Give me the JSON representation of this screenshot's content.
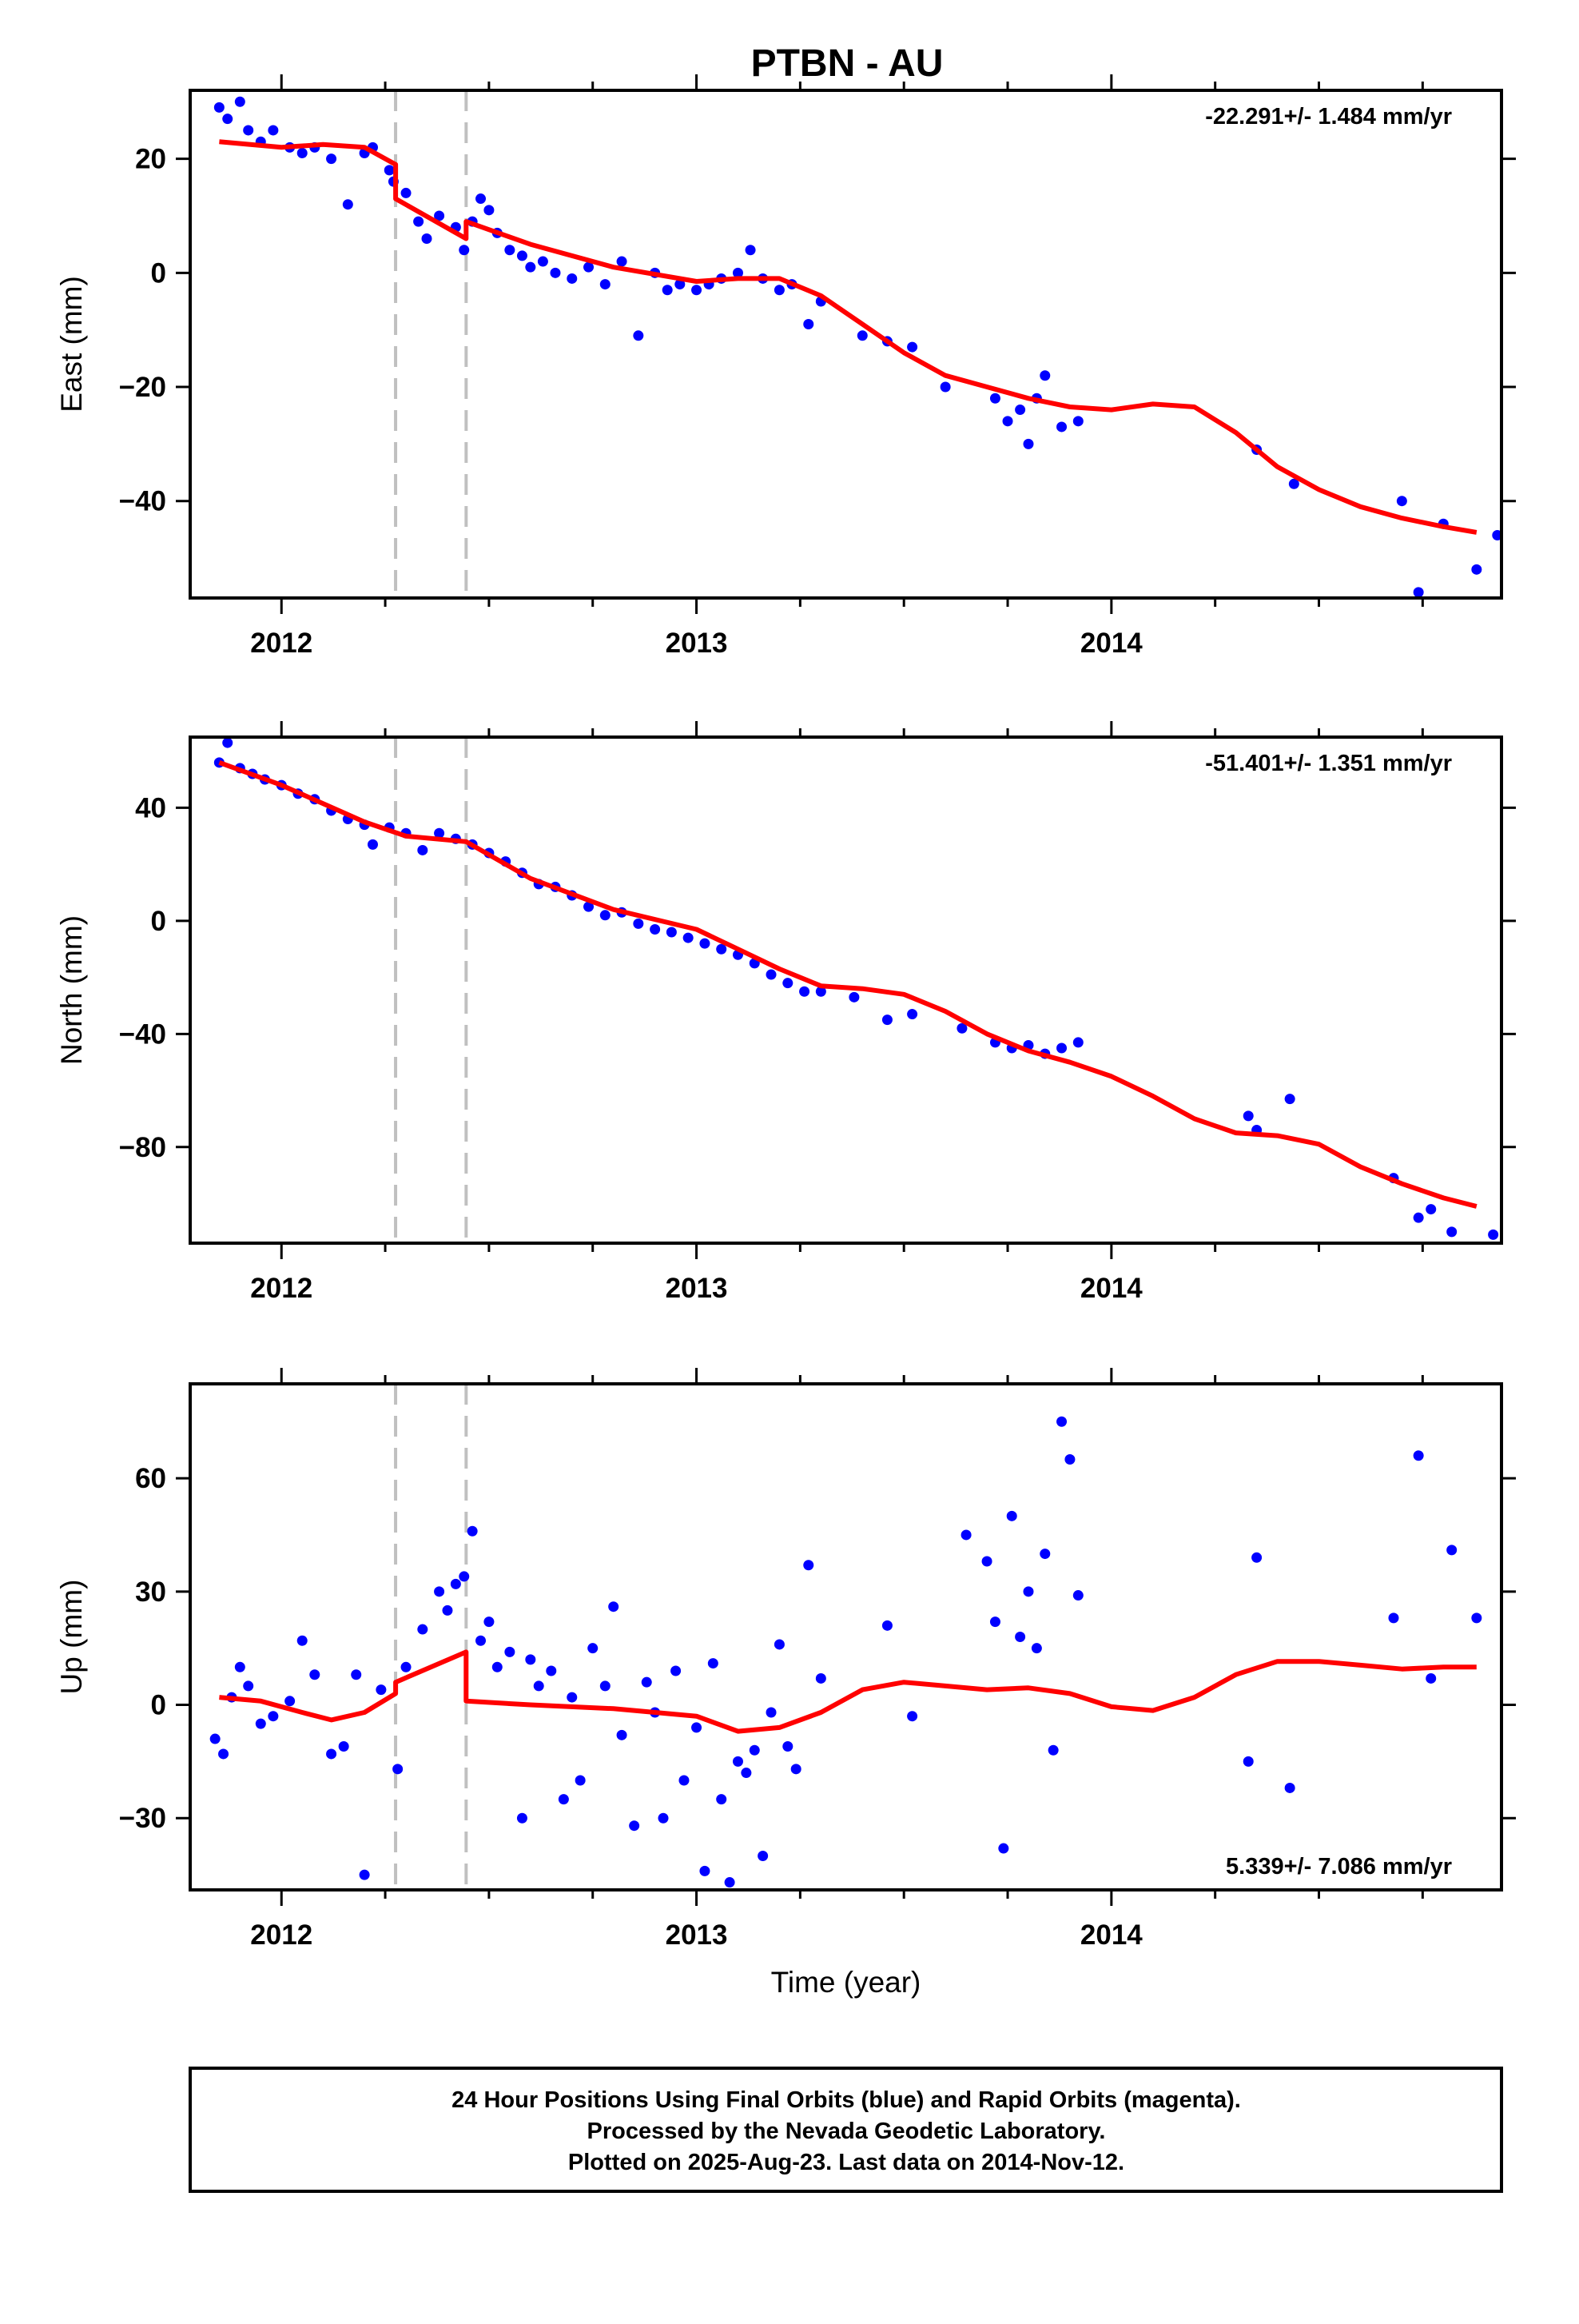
{
  "title": "PTBN - AU",
  "colors": {
    "final_orbits": "#0000ff",
    "model": "#ff0000",
    "offsets": "#c0c0c0",
    "frame": "#000000"
  },
  "footer": {
    "line1": "24 Hour Positions Using Final Orbits (blue) and Rapid Orbits (magenta).",
    "line2": "Processed by the Nevada Geodetic Laboratory.",
    "line3": "Plotted on 2025-Aug-23. Last data on 2014-Nov-12."
  },
  "chart_data": [
    {
      "type": "scatter",
      "panel": "east",
      "ylabel": "East (mm)",
      "xlabel": "",
      "rate_label": "-22.291+/- 1.484 mm/yr",
      "xlim": [
        2011.78,
        2014.94
      ],
      "ylim": [
        -57,
        32
      ],
      "xticks": [
        2012,
        2013,
        2014
      ],
      "yticks": [
        -40,
        -20,
        0,
        20
      ],
      "offsets": [
        2012.275,
        2012.445
      ],
      "series": [
        {
          "kind": "points",
          "x": [
            2011.85,
            2011.87,
            2011.9,
            2011.92,
            2011.95,
            2011.98,
            2012.02,
            2012.05,
            2012.08,
            2012.12,
            2012.16,
            2012.2,
            2012.22,
            2012.26,
            2012.27,
            2012.3,
            2012.33,
            2012.35,
            2012.38,
            2012.42,
            2012.44,
            2012.46,
            2012.48,
            2012.5,
            2012.52,
            2012.55,
            2012.58,
            2012.6,
            2012.63,
            2012.66,
            2012.7,
            2012.74,
            2012.78,
            2012.82,
            2012.86,
            2012.9,
            2012.93,
            2012.96,
            2013.0,
            2013.03,
            2013.06,
            2013.1,
            2013.13,
            2013.16,
            2013.2,
            2013.23,
            2013.27,
            2013.3,
            2013.4,
            2013.46,
            2013.52,
            2013.6,
            2013.72,
            2013.75,
            2013.78,
            2013.8,
            2013.82,
            2013.84,
            2013.88,
            2013.92,
            2014.35,
            2014.44,
            2014.7,
            2014.74,
            2014.8,
            2014.88,
            2014.93
          ],
          "y": [
            29,
            27,
            30,
            25,
            23,
            25,
            22,
            21,
            22,
            20,
            12,
            21,
            22,
            18,
            16,
            14,
            9,
            6,
            10,
            8,
            4,
            9,
            13,
            11,
            7,
            4,
            3,
            1,
            2,
            0,
            -1,
            1,
            -2,
            2,
            -11,
            0,
            -3,
            -2,
            -3,
            -2,
            -1,
            0,
            4,
            -1,
            -3,
            -2,
            -9,
            -5,
            -11,
            -12,
            -13,
            -20,
            -22,
            -26,
            -24,
            -30,
            -22,
            -18,
            -27,
            -26,
            -31,
            -37,
            -40,
            -56,
            -44,
            -52,
            -46
          ]
        },
        {
          "kind": "model",
          "x": [
            2011.85,
            2012.0,
            2012.1,
            2012.2,
            2012.275,
            2012.275,
            2012.445,
            2012.445,
            2012.6,
            2012.8,
            2013.0,
            2013.1,
            2013.2,
            2013.3,
            2013.4,
            2013.5,
            2013.6,
            2013.7,
            2013.8,
            2013.9,
            2014.0,
            2014.1,
            2014.2,
            2014.3,
            2014.4,
            2014.5,
            2014.6,
            2014.7,
            2014.8,
            2014.88
          ],
          "y": [
            23,
            22,
            22.5,
            22,
            19,
            13,
            6,
            9,
            5,
            1,
            -1.5,
            -1,
            -1,
            -4,
            -9,
            -14,
            -18,
            -20,
            -22,
            -23.5,
            -24,
            -23,
            -23.5,
            -28,
            -34,
            -38,
            -41,
            -43,
            -44.5,
            -45.5
          ]
        }
      ]
    },
    {
      "type": "scatter",
      "panel": "north",
      "ylabel": "North (mm)",
      "xlabel": "",
      "rate_label": "-51.401+/- 1.351 mm/yr",
      "xlim": [
        2011.78,
        2014.94
      ],
      "ylim": [
        -114,
        65
      ],
      "xticks": [
        2012,
        2013,
        2014
      ],
      "yticks": [
        -80,
        -40,
        0,
        40
      ],
      "offsets": [
        2012.275,
        2012.445
      ],
      "series": [
        {
          "kind": "points",
          "x": [
            2011.85,
            2011.87,
            2011.9,
            2011.93,
            2011.96,
            2012.0,
            2012.04,
            2012.08,
            2012.12,
            2012.16,
            2012.2,
            2012.22,
            2012.26,
            2012.3,
            2012.34,
            2012.38,
            2012.42,
            2012.46,
            2012.5,
            2012.54,
            2012.58,
            2012.62,
            2012.66,
            2012.7,
            2012.74,
            2012.78,
            2012.82,
            2012.86,
            2012.9,
            2012.94,
            2012.98,
            2013.02,
            2013.06,
            2013.1,
            2013.14,
            2013.18,
            2013.22,
            2013.26,
            2013.3,
            2013.38,
            2013.46,
            2013.52,
            2013.64,
            2013.72,
            2013.76,
            2013.8,
            2013.84,
            2013.88,
            2013.92,
            2014.33,
            2014.35,
            2014.43,
            2014.68,
            2014.74,
            2014.77,
            2014.82,
            2014.92
          ],
          "y": [
            56,
            63,
            54,
            52,
            50,
            48,
            45,
            43,
            39,
            36,
            34,
            27,
            33,
            31,
            25,
            31,
            29,
            27,
            24,
            21,
            17,
            13,
            12,
            9,
            5,
            2,
            3,
            -1,
            -3,
            -4,
            -6,
            -8,
            -10,
            -12,
            -15,
            -19,
            -22,
            -25,
            -25,
            -27,
            -35,
            -33,
            -38,
            -43,
            -45,
            -44,
            -47,
            -45,
            -43,
            -69,
            -74,
            -63,
            -91,
            -105,
            -102,
            -110,
            -111
          ]
        },
        {
          "kind": "model",
          "x": [
            2011.85,
            2012.0,
            2012.2,
            2012.3,
            2012.445,
            2012.6,
            2012.8,
            2013.0,
            2013.1,
            2013.2,
            2013.3,
            2013.4,
            2013.5,
            2013.6,
            2013.7,
            2013.8,
            2013.9,
            2014.0,
            2014.1,
            2014.2,
            2014.3,
            2014.4,
            2014.5,
            2014.6,
            2014.7,
            2014.8,
            2014.88
          ],
          "y": [
            56,
            48,
            35,
            30,
            28,
            15,
            4,
            -3,
            -10,
            -17,
            -23,
            -24,
            -26,
            -32,
            -40,
            -46,
            -50,
            -55,
            -62,
            -70,
            -75,
            -76,
            -79,
            -87,
            -93,
            -98,
            -101
          ]
        }
      ]
    },
    {
      "type": "scatter",
      "panel": "up",
      "ylabel": "Up (mm)",
      "xlabel": "Time (year)",
      "rate_label": "5.339+/- 7.086 mm/yr",
      "xlim": [
        2011.78,
        2014.94
      ],
      "ylim": [
        -49,
        85
      ],
      "xticks": [
        2012,
        2013,
        2014
      ],
      "yticks": [
        -30,
        0,
        30,
        60
      ],
      "offsets": [
        2012.275,
        2012.445
      ],
      "series": [
        {
          "kind": "points",
          "x": [
            2011.84,
            2011.86,
            2011.88,
            2011.9,
            2011.92,
            2011.95,
            2011.98,
            2012.02,
            2012.05,
            2012.08,
            2012.12,
            2012.15,
            2012.18,
            2012.2,
            2012.24,
            2012.28,
            2012.3,
            2012.34,
            2012.38,
            2012.4,
            2012.42,
            2012.44,
            2012.46,
            2012.48,
            2012.5,
            2012.52,
            2012.55,
            2012.58,
            2012.6,
            2012.62,
            2012.65,
            2012.68,
            2012.7,
            2012.72,
            2012.75,
            2012.78,
            2012.8,
            2012.82,
            2012.85,
            2012.88,
            2012.9,
            2012.92,
            2012.95,
            2012.97,
            2013.0,
            2013.02,
            2013.04,
            2013.06,
            2013.08,
            2013.1,
            2013.12,
            2013.14,
            2013.16,
            2013.18,
            2013.2,
            2013.22,
            2013.24,
            2013.27,
            2013.3,
            2013.46,
            2013.52,
            2013.65,
            2013.7,
            2013.72,
            2013.74,
            2013.76,
            2013.78,
            2013.8,
            2013.82,
            2013.84,
            2013.86,
            2013.88,
            2013.9,
            2013.92,
            2014.33,
            2014.35,
            2014.43,
            2014.68,
            2014.74,
            2014.77,
            2014.82,
            2014.88
          ],
          "y": [
            -9,
            -13,
            2,
            10,
            5,
            -5,
            -3,
            1,
            17,
            8,
            -13,
            -11,
            8,
            -45,
            4,
            -17,
            10,
            20,
            30,
            25,
            32,
            34,
            46,
            17,
            22,
            10,
            14,
            -30,
            12,
            5,
            9,
            -25,
            2,
            -20,
            15,
            5,
            26,
            -8,
            -32,
            6,
            -2,
            -30,
            9,
            -20,
            -6,
            -44,
            11,
            -25,
            -47,
            -15,
            -18,
            -12,
            -40,
            -2,
            16,
            -11,
            -17,
            37,
            7,
            21,
            -3,
            45,
            38,
            22,
            -38,
            50,
            18,
            30,
            15,
            40,
            -12,
            75,
            65,
            29,
            -15,
            39,
            -22,
            23,
            66,
            7,
            41,
            23
          ]
        },
        {
          "kind": "model",
          "x": [
            2011.85,
            2011.95,
            2012.05,
            2012.12,
            2012.2,
            2012.275,
            2012.275,
            2012.445,
            2012.445,
            2012.6,
            2012.8,
            2013.0,
            2013.1,
            2013.2,
            2013.3,
            2013.4,
            2013.5,
            2013.6,
            2013.7,
            2013.8,
            2013.9,
            2014.0,
            2014.1,
            2014.2,
            2014.3,
            2014.4,
            2014.5,
            2014.6,
            2014.7,
            2014.8,
            2014.88
          ],
          "y": [
            2,
            1,
            -2,
            -4,
            -2,
            3,
            6,
            14,
            1,
            0,
            -1,
            -3,
            -7,
            -6,
            -2,
            4,
            6,
            5,
            4,
            4.5,
            3,
            -0.5,
            -1.5,
            2,
            8,
            11.5,
            11.5,
            10.5,
            9.5,
            10,
            10
          ]
        }
      ]
    }
  ]
}
